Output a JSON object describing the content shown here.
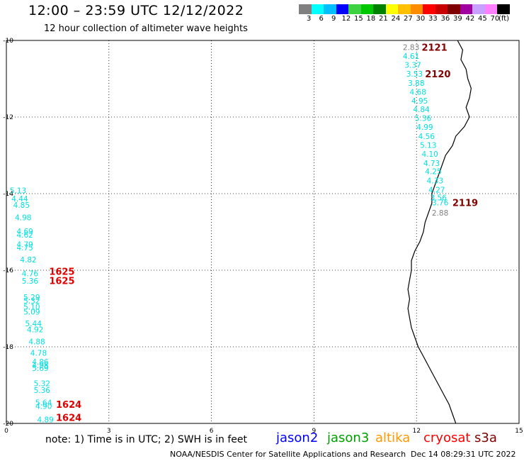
{
  "header": {
    "title": "12:00 – 23:59 UTC 12/12/2022",
    "subtitle": "12 hour collection of altimeter wave heights"
  },
  "colorbar": {
    "colors": [
      "#808080",
      "#00ffff",
      "#00bfff",
      "#0000ff",
      "#3cd240",
      "#00c800",
      "#008000",
      "#ffff00",
      "#ffc000",
      "#ff8c00",
      "#ff0000",
      "#c80000",
      "#800000",
      "#a000a0",
      "#c8a0ff",
      "#ff80ff",
      "#000000"
    ],
    "labels": [
      "3",
      "6",
      "9",
      "12",
      "15",
      "18",
      "21",
      "24",
      "27",
      "30",
      "33",
      "36",
      "39",
      "42",
      "45",
      "70",
      "(ft)"
    ]
  },
  "axes": {
    "x_ticks": [
      "0",
      "3",
      "6",
      "9",
      "12",
      "15"
    ],
    "y_ticks": [
      "-10",
      "-12",
      "-14",
      "-16",
      "-18",
      "-20"
    ]
  },
  "wave_points": [
    {
      "lon": 11.6,
      "lat": -10.18,
      "value": "2.83",
      "color": "#808080"
    },
    {
      "lon": 11.6,
      "lat": -10.41,
      "value": "4.61",
      "color": "#00e0e0"
    },
    {
      "lon": 11.65,
      "lat": -10.64,
      "value": "3.37",
      "color": "#00e0e0"
    },
    {
      "lon": 11.7,
      "lat": -10.87,
      "value": "3.53",
      "color": "#00e0e0"
    },
    {
      "lon": 11.75,
      "lat": -11.11,
      "value": "3.88",
      "color": "#00e0e0"
    },
    {
      "lon": 11.8,
      "lat": -11.34,
      "value": "4.68",
      "color": "#00e0e0"
    },
    {
      "lon": 11.85,
      "lat": -11.57,
      "value": "4.95",
      "color": "#00e0e0"
    },
    {
      "lon": 11.9,
      "lat": -11.8,
      "value": "4.84",
      "color": "#00e0e0"
    },
    {
      "lon": 11.95,
      "lat": -12.03,
      "value": "5.36",
      "color": "#00e0e0"
    },
    {
      "lon": 12.0,
      "lat": -12.26,
      "value": "4.99",
      "color": "#00e0e0"
    },
    {
      "lon": 12.05,
      "lat": -12.5,
      "value": "4.56",
      "color": "#00e0e0"
    },
    {
      "lon": 12.1,
      "lat": -12.73,
      "value": "5.13",
      "color": "#00e0e0"
    },
    {
      "lon": 12.15,
      "lat": -12.96,
      "value": "4.10",
      "color": "#00e0e0"
    },
    {
      "lon": 12.2,
      "lat": -13.2,
      "value": "4.73",
      "color": "#00e0e0"
    },
    {
      "lon": 12.25,
      "lat": -13.42,
      "value": "4.25",
      "color": "#00e0e0"
    },
    {
      "lon": 12.3,
      "lat": -13.66,
      "value": "4.33",
      "color": "#00e0e0"
    },
    {
      "lon": 12.35,
      "lat": -13.9,
      "value": "4.27",
      "color": "#00e0e0"
    },
    {
      "lon": 12.4,
      "lat": -14.1,
      "value": "3.56",
      "color": "#00e0e0"
    },
    {
      "lon": 12.45,
      "lat": -14.23,
      "value": "3.76",
      "color": "#00e0e0"
    },
    {
      "lon": 12.45,
      "lat": -14.5,
      "value": "2.88",
      "color": "#808080"
    },
    {
      "lon": 0.1,
      "lat": -13.92,
      "value": "5.13",
      "color": "#00e0e0"
    },
    {
      "lon": 0.15,
      "lat": -14.13,
      "value": "4.44",
      "color": "#00e0e0"
    },
    {
      "lon": 0.2,
      "lat": -14.3,
      "value": "4.85",
      "color": "#00e0e0"
    },
    {
      "lon": 0.25,
      "lat": -14.62,
      "value": "4.98",
      "color": "#00e0e0"
    },
    {
      "lon": 0.3,
      "lat": -14.98,
      "value": "4.69",
      "color": "#00e0e0"
    },
    {
      "lon": 0.3,
      "lat": -15.07,
      "value": "4.62",
      "color": "#00e0e0"
    },
    {
      "lon": 0.3,
      "lat": -15.32,
      "value": "4.79",
      "color": "#00e0e0"
    },
    {
      "lon": 0.3,
      "lat": -15.41,
      "value": "4.75",
      "color": "#00e0e0"
    },
    {
      "lon": 0.4,
      "lat": -15.72,
      "value": "4.82",
      "color": "#00e0e0"
    },
    {
      "lon": 0.45,
      "lat": -16.08,
      "value": "4.76",
      "color": "#00e0e0"
    },
    {
      "lon": 0.45,
      "lat": -16.28,
      "value": "5.36",
      "color": "#00e0e0"
    },
    {
      "lon": 0.5,
      "lat": -16.7,
      "value": "5.29",
      "color": "#00e0e0"
    },
    {
      "lon": 0.5,
      "lat": -16.8,
      "value": "5.32",
      "color": "#00e0e0"
    },
    {
      "lon": 0.5,
      "lat": -16.95,
      "value": "5.10",
      "color": "#00e0e0"
    },
    {
      "lon": 0.5,
      "lat": -17.08,
      "value": "5.09",
      "color": "#00e0e0"
    },
    {
      "lon": 0.55,
      "lat": -17.39,
      "value": "5.44",
      "color": "#00e0e0"
    },
    {
      "lon": 0.6,
      "lat": -17.55,
      "value": "4.92",
      "color": "#00e0e0"
    },
    {
      "lon": 0.65,
      "lat": -17.86,
      "value": "4.88",
      "color": "#00e0e0"
    },
    {
      "lon": 0.7,
      "lat": -18.16,
      "value": "4.78",
      "color": "#00e0e0"
    },
    {
      "lon": 0.75,
      "lat": -18.39,
      "value": "4.86",
      "color": "#00e0e0"
    },
    {
      "lon": 0.75,
      "lat": -18.48,
      "value": "4.98",
      "color": "#00e0e0"
    },
    {
      "lon": 0.75,
      "lat": -18.56,
      "value": "5.69",
      "color": "#00e0e0"
    },
    {
      "lon": 0.8,
      "lat": -18.95,
      "value": "5.32",
      "color": "#00e0e0"
    },
    {
      "lon": 0.8,
      "lat": -19.13,
      "value": "5.36",
      "color": "#00e0e0"
    },
    {
      "lon": 0.85,
      "lat": -19.45,
      "value": "5.64",
      "color": "#00e0e0"
    },
    {
      "lon": 0.85,
      "lat": -19.55,
      "value": "4.90",
      "color": "#00e0e0"
    },
    {
      "lon": 0.9,
      "lat": -19.9,
      "value": "4.89",
      "color": "#00e0e0"
    }
  ],
  "time_labels": [
    {
      "lon": 12.15,
      "lat": -10.18,
      "value": "2121",
      "color": "#800000"
    },
    {
      "lon": 12.25,
      "lat": -10.87,
      "value": "2120",
      "color": "#800000"
    },
    {
      "lon": 13.05,
      "lat": -14.23,
      "value": "2119",
      "color": "#800000"
    },
    {
      "lon": 1.25,
      "lat": -16.03,
      "value": "1625",
      "color": "#e00000"
    },
    {
      "lon": 1.25,
      "lat": -16.27,
      "value": "1625",
      "color": "#e00000"
    },
    {
      "lon": 1.45,
      "lat": -19.5,
      "value": "1624",
      "color": "#e00000"
    },
    {
      "lon": 1.45,
      "lat": -19.84,
      "value": "1624",
      "color": "#e00000"
    }
  ],
  "coastline": [
    [
      13.2,
      -10.0
    ],
    [
      13.35,
      -10.25
    ],
    [
      13.3,
      -10.5
    ],
    [
      13.45,
      -10.75
    ],
    [
      13.5,
      -11.0
    ],
    [
      13.6,
      -11.25
    ],
    [
      13.55,
      -11.5
    ],
    [
      13.45,
      -11.75
    ],
    [
      13.55,
      -12.0
    ],
    [
      13.4,
      -12.25
    ],
    [
      13.15,
      -12.5
    ],
    [
      13.05,
      -12.75
    ],
    [
      12.85,
      -13.0
    ],
    [
      12.75,
      -13.25
    ],
    [
      12.65,
      -13.5
    ],
    [
      12.55,
      -13.75
    ],
    [
      12.45,
      -14.0
    ],
    [
      12.45,
      -14.25
    ],
    [
      12.35,
      -14.5
    ],
    [
      12.25,
      -14.75
    ],
    [
      12.2,
      -15.0
    ],
    [
      12.1,
      -15.25
    ],
    [
      11.95,
      -15.5
    ],
    [
      11.85,
      -15.75
    ],
    [
      11.85,
      -16.0
    ],
    [
      11.8,
      -16.25
    ],
    [
      11.75,
      -16.5
    ],
    [
      11.8,
      -16.75
    ],
    [
      11.75,
      -17.0
    ],
    [
      11.8,
      -17.25
    ],
    [
      11.85,
      -17.5
    ],
    [
      11.95,
      -17.75
    ],
    [
      12.05,
      -18.0
    ],
    [
      12.2,
      -18.25
    ],
    [
      12.35,
      -18.5
    ],
    [
      12.5,
      -18.75
    ],
    [
      12.65,
      -19.0
    ],
    [
      12.8,
      -19.25
    ],
    [
      12.95,
      -19.5
    ],
    [
      13.05,
      -19.75
    ],
    [
      13.15,
      -20.0
    ]
  ],
  "footer": {
    "note": "note:  1)  Time is in UTC;  2)  SWH is in feet",
    "satellites": [
      {
        "name": "jason2",
        "color": "#0000ff"
      },
      {
        "name": "jason3",
        "color": "#00a000"
      },
      {
        "name": "altika",
        "color": "#ff9900"
      },
      {
        "name": "cryosat",
        "color": "#ff0000"
      },
      {
        "name": "s3a",
        "color": "#800000"
      }
    ],
    "credit": "NOAA/NESDIS Center for Satellite Applications and Research",
    "timestamp": "Dec 14 08:29:31 UTC 2022"
  }
}
